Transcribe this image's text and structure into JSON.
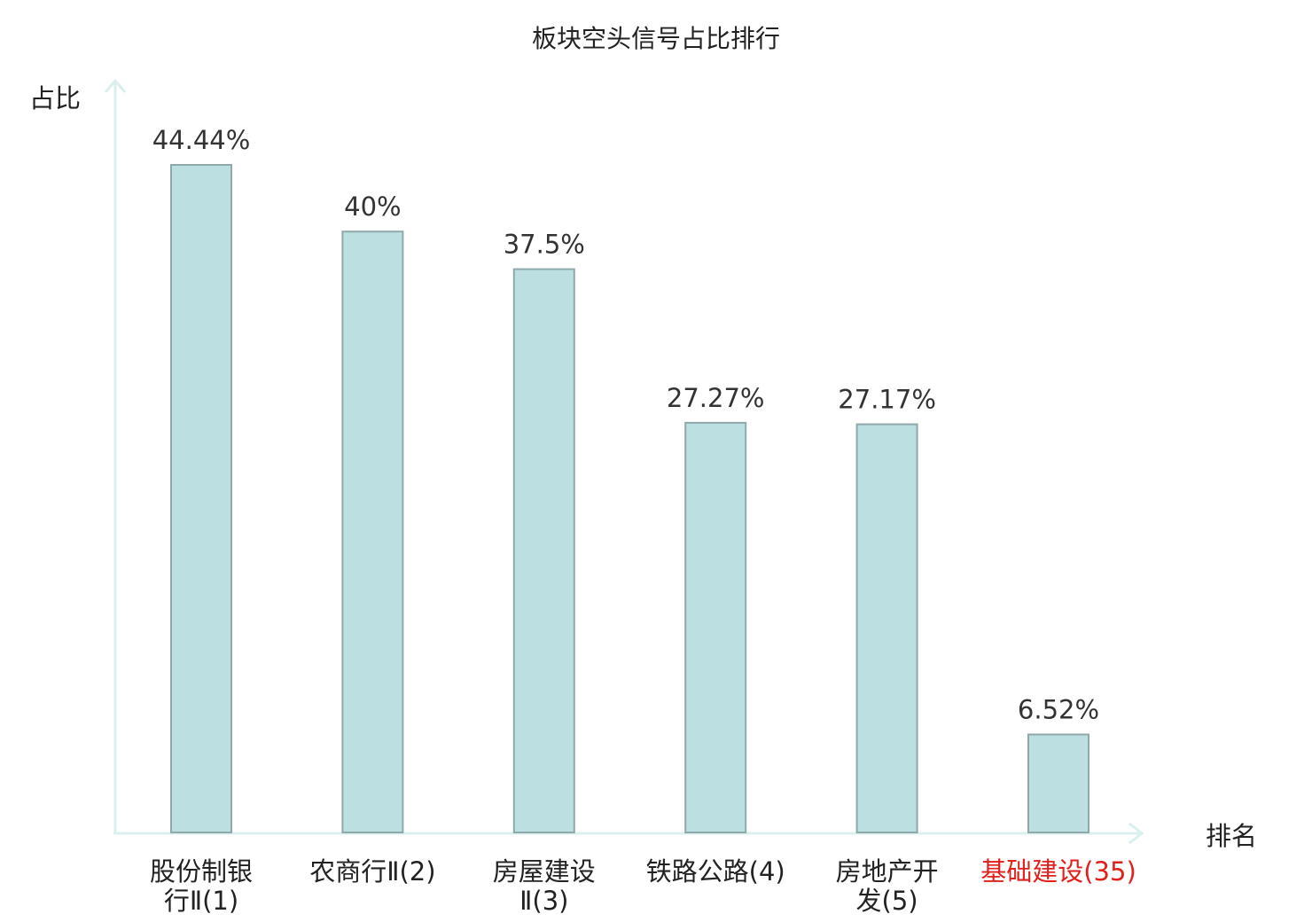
{
  "chart_data": {
    "type": "bar",
    "title": "板块空头信号占比排行",
    "ylabel": "占比",
    "xlabel": "排名",
    "ylim": [
      0,
      50
    ],
    "grid": false,
    "categories": [
      [
        "股份制银",
        "行Ⅱ(1)"
      ],
      [
        "农商行Ⅱ(2)"
      ],
      [
        "房屋建设",
        "Ⅱ(3)"
      ],
      [
        "铁路公路(4)"
      ],
      [
        "房地产开",
        "发(5)"
      ],
      [
        "基础建设(35)"
      ]
    ],
    "values": [
      44.44,
      40,
      37.5,
      27.27,
      27.17,
      6.52
    ],
    "value_labels": [
      "44.44%",
      "40%",
      "37.5%",
      "27.27%",
      "27.17%",
      "6.52%"
    ],
    "highlight_index": 5,
    "colors": {
      "bar_fill": "#bce0e2",
      "bar_stroke": "#8fa9aa",
      "axis": "#dcefef",
      "highlight_text": "#e0201a",
      "text": "#222222"
    }
  }
}
